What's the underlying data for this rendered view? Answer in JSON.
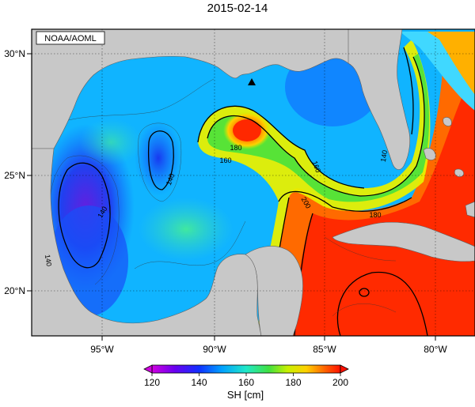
{
  "title": "2015-02-14",
  "credit": "NOAA/AOML",
  "axes": {
    "lat_labels": [
      "30°N",
      "25°N",
      "20°N"
    ],
    "lon_labels": [
      "95°W",
      "90°W",
      "85°W",
      "80°W"
    ]
  },
  "contour_labels": [
    "180",
    "160",
    "140",
    "140",
    "140",
    "160",
    "200",
    "180",
    "140"
  ],
  "colorbar": {
    "title": "SH [cm]",
    "min": 120,
    "max": 200,
    "tick_labels": [
      "120",
      "140",
      "160",
      "180",
      "200"
    ]
  },
  "colors": {
    "land": "#c8c8c8",
    "background": "#ffffff"
  },
  "marker": "triangle-icon"
}
